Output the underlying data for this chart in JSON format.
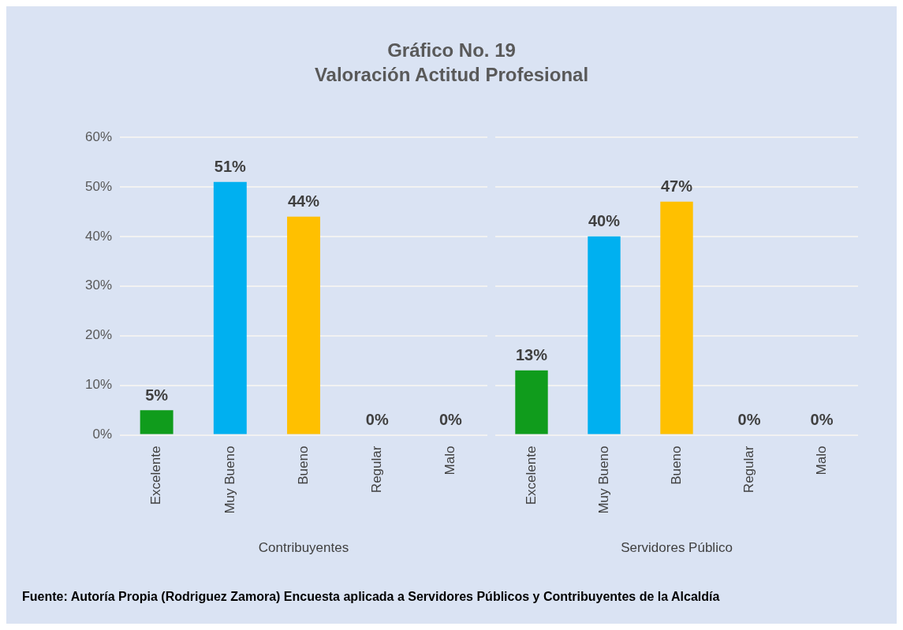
{
  "chart_data": [
    {
      "type": "bar",
      "title": "Gráfico No. 19\nValoración Actitud Profesional",
      "xlabel": "Contribuyentes",
      "categories": [
        "Excelente",
        "Muy Bueno",
        "Bueno",
        "Regular",
        "Malo"
      ],
      "values": [
        5,
        51,
        44,
        0,
        0
      ],
      "value_labels": [
        "5%",
        "51%",
        "44%",
        "0%",
        "0%"
      ],
      "colors": [
        "#109c1c",
        "#00b0f0",
        "#ffc000",
        "#5b2a86",
        "#00d000"
      ],
      "ylim": [
        0,
        60
      ],
      "yticks": [
        {
          "value": 0,
          "label": "0%"
        },
        {
          "value": 10,
          "label": "10%"
        },
        {
          "value": 20,
          "label": "20%"
        },
        {
          "value": 30,
          "label": "30%"
        },
        {
          "value": 40,
          "label": "40%"
        },
        {
          "value": 50,
          "label": "50%"
        },
        {
          "value": 60,
          "label": "60%"
        }
      ],
      "grid": "y",
      "legend": false,
      "annotations": [
        "Fuente:  Autoría Propia (Rodriguez Zamora) Encuesta aplicada a Servidores Públicos y Contribuyentes de la Alcaldía"
      ]
    },
    {
      "type": "bar",
      "xlabel": "Servidores Público",
      "categories": [
        "Excelente",
        "Muy Bueno",
        "Bueno",
        "Regular",
        "Malo"
      ],
      "values": [
        13,
        40,
        47,
        0,
        0
      ],
      "value_labels": [
        "13%",
        "40%",
        "47%",
        "0%",
        "0%"
      ],
      "colors": [
        "#109c1c",
        "#00b0f0",
        "#ffc000",
        "#5b2a86",
        "#00d000"
      ],
      "ylim": [
        0,
        60
      ],
      "yticks": [
        {
          "value": 0,
          "label": null
        },
        {
          "value": 10,
          "label": null
        },
        {
          "value": 20,
          "label": null
        },
        {
          "value": 30,
          "label": null
        },
        {
          "value": 40,
          "label": null
        },
        {
          "value": 50,
          "label": null
        },
        {
          "value": 60,
          "label": null
        }
      ],
      "grid": "y",
      "legend": false,
      "tick_labels": "x"
    }
  ]
}
